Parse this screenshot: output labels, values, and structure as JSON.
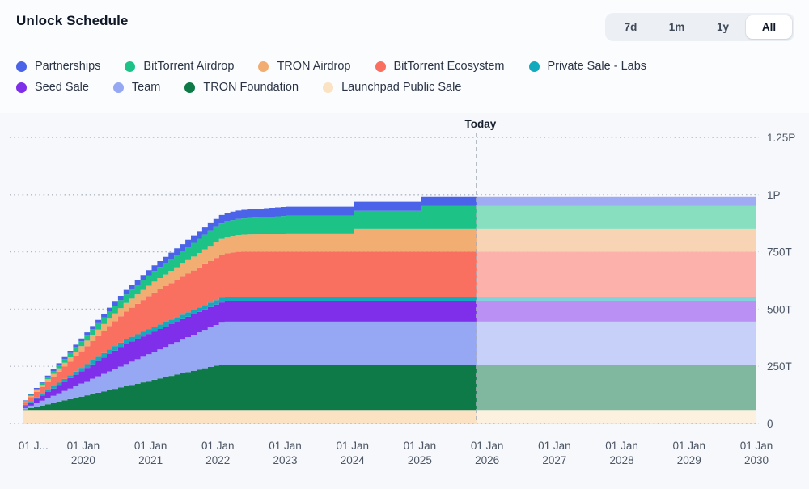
{
  "header": {
    "title": "Unlock Schedule"
  },
  "range_selector": {
    "options": [
      "7d",
      "1m",
      "1y",
      "All"
    ],
    "active": "All"
  },
  "legend": {
    "rows": [
      [
        {
          "label": "Partnerships",
          "color": "#4A63E8"
        },
        {
          "label": "BitTorrent Airdrop",
          "color": "#1DC287"
        },
        {
          "label": "TRON Airdrop",
          "color": "#F1AD72"
        },
        {
          "label": "BitTorrent Ecosystem",
          "color": "#F96F60"
        },
        {
          "label": "Private Sale - Labs",
          "color": "#13AABE"
        }
      ],
      [
        {
          "label": "Seed Sale",
          "color": "#7F2FEA"
        },
        {
          "label": "Team",
          "color": "#96A7F3"
        },
        {
          "label": "TRON Foundation",
          "color": "#0E7A48"
        },
        {
          "label": "Launchpad Public Sale",
          "color": "#FAE2C3"
        }
      ]
    ]
  },
  "chart_data": {
    "type": "area",
    "stacked": true,
    "title": "Unlock Schedule",
    "value_unit": "trillions of tokens (T), P = 1000T",
    "x_domain_years": [
      2019.1,
      2030
    ],
    "y_domain": [
      0,
      1250
    ],
    "grid": "dotted-horizontal",
    "legend_position": "top-left",
    "y_ticks": [
      {
        "value": 0,
        "label": "0"
      },
      {
        "value": 250,
        "label": "250T"
      },
      {
        "value": 500,
        "label": "500T"
      },
      {
        "value": 750,
        "label": "750T"
      },
      {
        "value": 1000,
        "label": "1P"
      },
      {
        "value": 1250,
        "label": "1.25P"
      }
    ],
    "x_ticks": [
      {
        "year": 2019.26,
        "line1": "01 J...",
        "line2": ""
      },
      {
        "year": 2020,
        "line1": "01 Jan",
        "line2": "2020"
      },
      {
        "year": 2021,
        "line1": "01 Jan",
        "line2": "2021"
      },
      {
        "year": 2022,
        "line1": "01 Jan",
        "line2": "2022"
      },
      {
        "year": 2023,
        "line1": "01 Jan",
        "line2": "2023"
      },
      {
        "year": 2024,
        "line1": "01 Jan",
        "line2": "2024"
      },
      {
        "year": 2025,
        "line1": "01 Jan",
        "line2": "2025"
      },
      {
        "year": 2026,
        "line1": "01 Jan",
        "line2": "2026"
      },
      {
        "year": 2027,
        "line1": "01 Jan",
        "line2": "2027"
      },
      {
        "year": 2028,
        "line1": "01 Jan",
        "line2": "2028"
      },
      {
        "year": 2029,
        "line1": "01 Jan",
        "line2": "2029"
      },
      {
        "year": 2030,
        "line1": "01 Jan",
        "line2": "2030"
      }
    ],
    "today": {
      "year": 2025.84,
      "label": "Today"
    },
    "series_note": "bottom-to-top stacking; keyframes are [year, cumulative unlocked in T]; step-after monthly interpolation",
    "series": [
      {
        "name": "Launchpad Public Sale",
        "color": "#FAE2C3",
        "keyframes": [
          [
            2019.1,
            59.4
          ],
          [
            2030,
            59.4
          ]
        ]
      },
      {
        "name": "TRON Foundation",
        "color": "#0E7A48",
        "keyframes": [
          [
            2019.1,
            2
          ],
          [
            2022.0,
            198
          ],
          [
            2030,
            198
          ]
        ]
      },
      {
        "name": "Team",
        "color": "#96A7F3",
        "keyframes": [
          [
            2019.1,
            6
          ],
          [
            2022.1,
            188
          ],
          [
            2030,
            188
          ]
        ]
      },
      {
        "name": "Seed Sale",
        "color": "#7F2FEA",
        "keyframes": [
          [
            2019.1,
            10
          ],
          [
            2020.6,
            89.1
          ],
          [
            2030,
            89.1
          ]
        ]
      },
      {
        "name": "Private Sale - Labs",
        "color": "#13AABE",
        "keyframes": [
          [
            2019.1,
            4
          ],
          [
            2020.3,
            19.8
          ],
          [
            2030,
            19.8
          ]
        ]
      },
      {
        "name": "BitTorrent Ecosystem",
        "color": "#F96F60",
        "keyframes": [
          [
            2019.1,
            12
          ],
          [
            2021.0,
            150
          ],
          [
            2022.3,
            197
          ],
          [
            2030,
            197
          ]
        ]
      },
      {
        "name": "TRON Airdrop",
        "color": "#F1AD72",
        "keyframes": [
          [
            2019.1,
            3
          ],
          [
            2022.0,
            70
          ],
          [
            2023.0,
            79
          ],
          [
            2023.999,
            79
          ],
          [
            2024.0,
            100
          ],
          [
            2030,
            100
          ]
        ]
      },
      {
        "name": "BitTorrent Airdrop",
        "color": "#1DC287",
        "keyframes": [
          [
            2019.1,
            3
          ],
          [
            2022.0,
            69
          ],
          [
            2023.0,
            78
          ],
          [
            2024.999,
            78
          ],
          [
            2025.0,
            99
          ],
          [
            2030,
            99
          ]
        ]
      },
      {
        "name": "Partnerships",
        "color": "#4A63E8",
        "keyframes": [
          [
            2019.1,
            2
          ],
          [
            2022.0,
            36
          ],
          [
            2023.0,
            39.6
          ],
          [
            2030,
            39.6
          ]
        ]
      }
    ]
  }
}
